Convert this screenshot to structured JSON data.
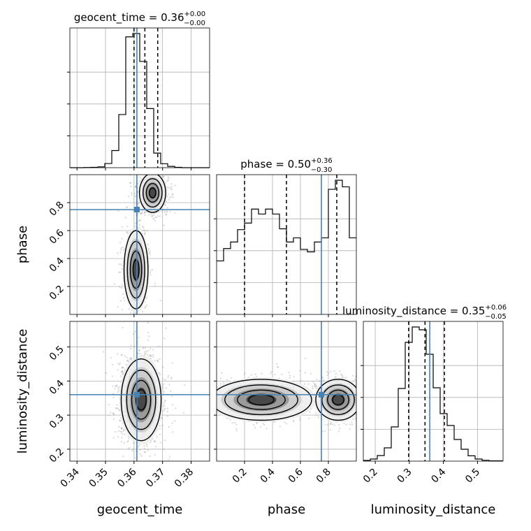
{
  "chart_data": {
    "type": "corner",
    "parameters": [
      "geocent_time",
      "phase",
      "luminosity_distance"
    ],
    "truths": {
      "geocent_time": 0.361,
      "phase": 0.75,
      "luminosity_distance": 0.36
    },
    "colors": {
      "truth": "#4682b4",
      "hist": "#000000",
      "grid": "#b0b0b0",
      "scatter": "#8c8c8c"
    },
    "grid": true,
    "titles": {
      "geocent_time": {
        "name": "geocent_time",
        "median": "0.36",
        "plus": "+0.00",
        "minus": "−0.00"
      },
      "phase": {
        "name": "phase",
        "median": "0.50",
        "plus": "+0.36",
        "minus": "−0.30"
      },
      "luminosity_distance": {
        "name": "luminosity_distance",
        "median": "0.35",
        "plus": "+0.06",
        "minus": "−0.05"
      }
    },
    "axes": {
      "geocent_time": {
        "label": "geocent_time",
        "range": [
          0.3375,
          0.3865
        ],
        "ticks": [
          0.34,
          0.35,
          0.36,
          0.37,
          0.38
        ],
        "tick_labels": [
          "0.34",
          "0.35",
          "0.36",
          "0.37",
          "0.38"
        ]
      },
      "phase": {
        "label": "phase",
        "range": [
          0.0,
          1.0
        ],
        "ticks": [
          0.2,
          0.4,
          0.6,
          0.8
        ],
        "tick_labels": [
          "0.2",
          "0.4",
          "0.6",
          "0.8"
        ]
      },
      "luminosity_distance": {
        "label": "luminosity_distance",
        "range": [
          0.165,
          0.575
        ],
        "ticks": [
          0.2,
          0.3,
          0.4,
          0.5
        ],
        "tick_labels": [
          "0.2",
          "0.3",
          "0.4",
          "0.5"
        ]
      }
    },
    "quantiles": {
      "geocent_time": [
        0.36,
        0.3638,
        0.3683
      ],
      "phase": [
        0.2,
        0.5,
        0.86
      ],
      "luminosity_distance": [
        0.298,
        0.346,
        0.403
      ]
    },
    "histograms": {
      "geocent_time": {
        "edges": [
          0.3375,
          0.33995,
          0.3424,
          0.34485,
          0.3473,
          0.34975,
          0.3522,
          0.35465,
          0.3571,
          0.35955,
          0.362,
          0.36445,
          0.3669,
          0.36935,
          0.3718,
          0.37425,
          0.3767,
          0.37915,
          0.3816,
          0.38405,
          0.3865
        ],
        "counts": [
          0,
          0,
          1,
          2,
          5,
          25,
          103,
          320,
          788,
          808,
          640,
          356,
          88,
          24,
          8,
          2,
          0,
          0,
          0,
          0
        ]
      },
      "phase": {
        "edges": [
          0.0,
          0.05,
          0.1,
          0.15,
          0.2,
          0.25,
          0.3,
          0.35,
          0.4,
          0.45,
          0.5,
          0.55,
          0.6,
          0.65,
          0.7,
          0.75,
          0.8,
          0.85,
          0.9,
          0.95,
          1.0
        ],
        "counts": [
          325,
          400,
          440,
          515,
          555,
          640,
          610,
          640,
          610,
          520,
          440,
          465,
          395,
          380,
          440,
          465,
          760,
          815,
          775,
          465
        ]
      },
      "luminosity_distance": {
        "edges": [
          0.165,
          0.1855,
          0.206,
          0.2265,
          0.247,
          0.2675,
          0.288,
          0.3085,
          0.329,
          0.3495,
          0.37,
          0.3905,
          0.411,
          0.4315,
          0.452,
          0.4725,
          0.493,
          0.5135,
          0.534,
          0.5545,
          0.575
        ],
        "counts": [
          5,
          15,
          40,
          95,
          245,
          520,
          850,
          960,
          940,
          765,
          525,
          340,
          255,
          155,
          85,
          38,
          15,
          6,
          2,
          2
        ]
      }
    },
    "pairs": [
      {
        "x": "geocent_time",
        "y": "phase",
        "modes": [
          {
            "x": 0.3665,
            "y": 0.87,
            "sx": 0.0023,
            "sy": 0.07,
            "w": 0.55
          },
          {
            "x": 0.3607,
            "y": 0.32,
            "sx": 0.0021,
            "sy": 0.14,
            "w": 0.45
          }
        ]
      },
      {
        "x": "geocent_time",
        "y": "luminosity_distance",
        "modes": [
          {
            "x": 0.3625,
            "y": 0.345,
            "sx": 0.0035,
            "sy": 0.06,
            "w": 1.0
          }
        ]
      },
      {
        "x": "phase",
        "y": "luminosity_distance",
        "modes": [
          {
            "x": 0.32,
            "y": 0.345,
            "sx": 0.18,
            "sy": 0.03,
            "w": 0.5
          },
          {
            "x": 0.87,
            "y": 0.345,
            "sx": 0.08,
            "sy": 0.03,
            "w": 0.5
          }
        ]
      }
    ]
  }
}
